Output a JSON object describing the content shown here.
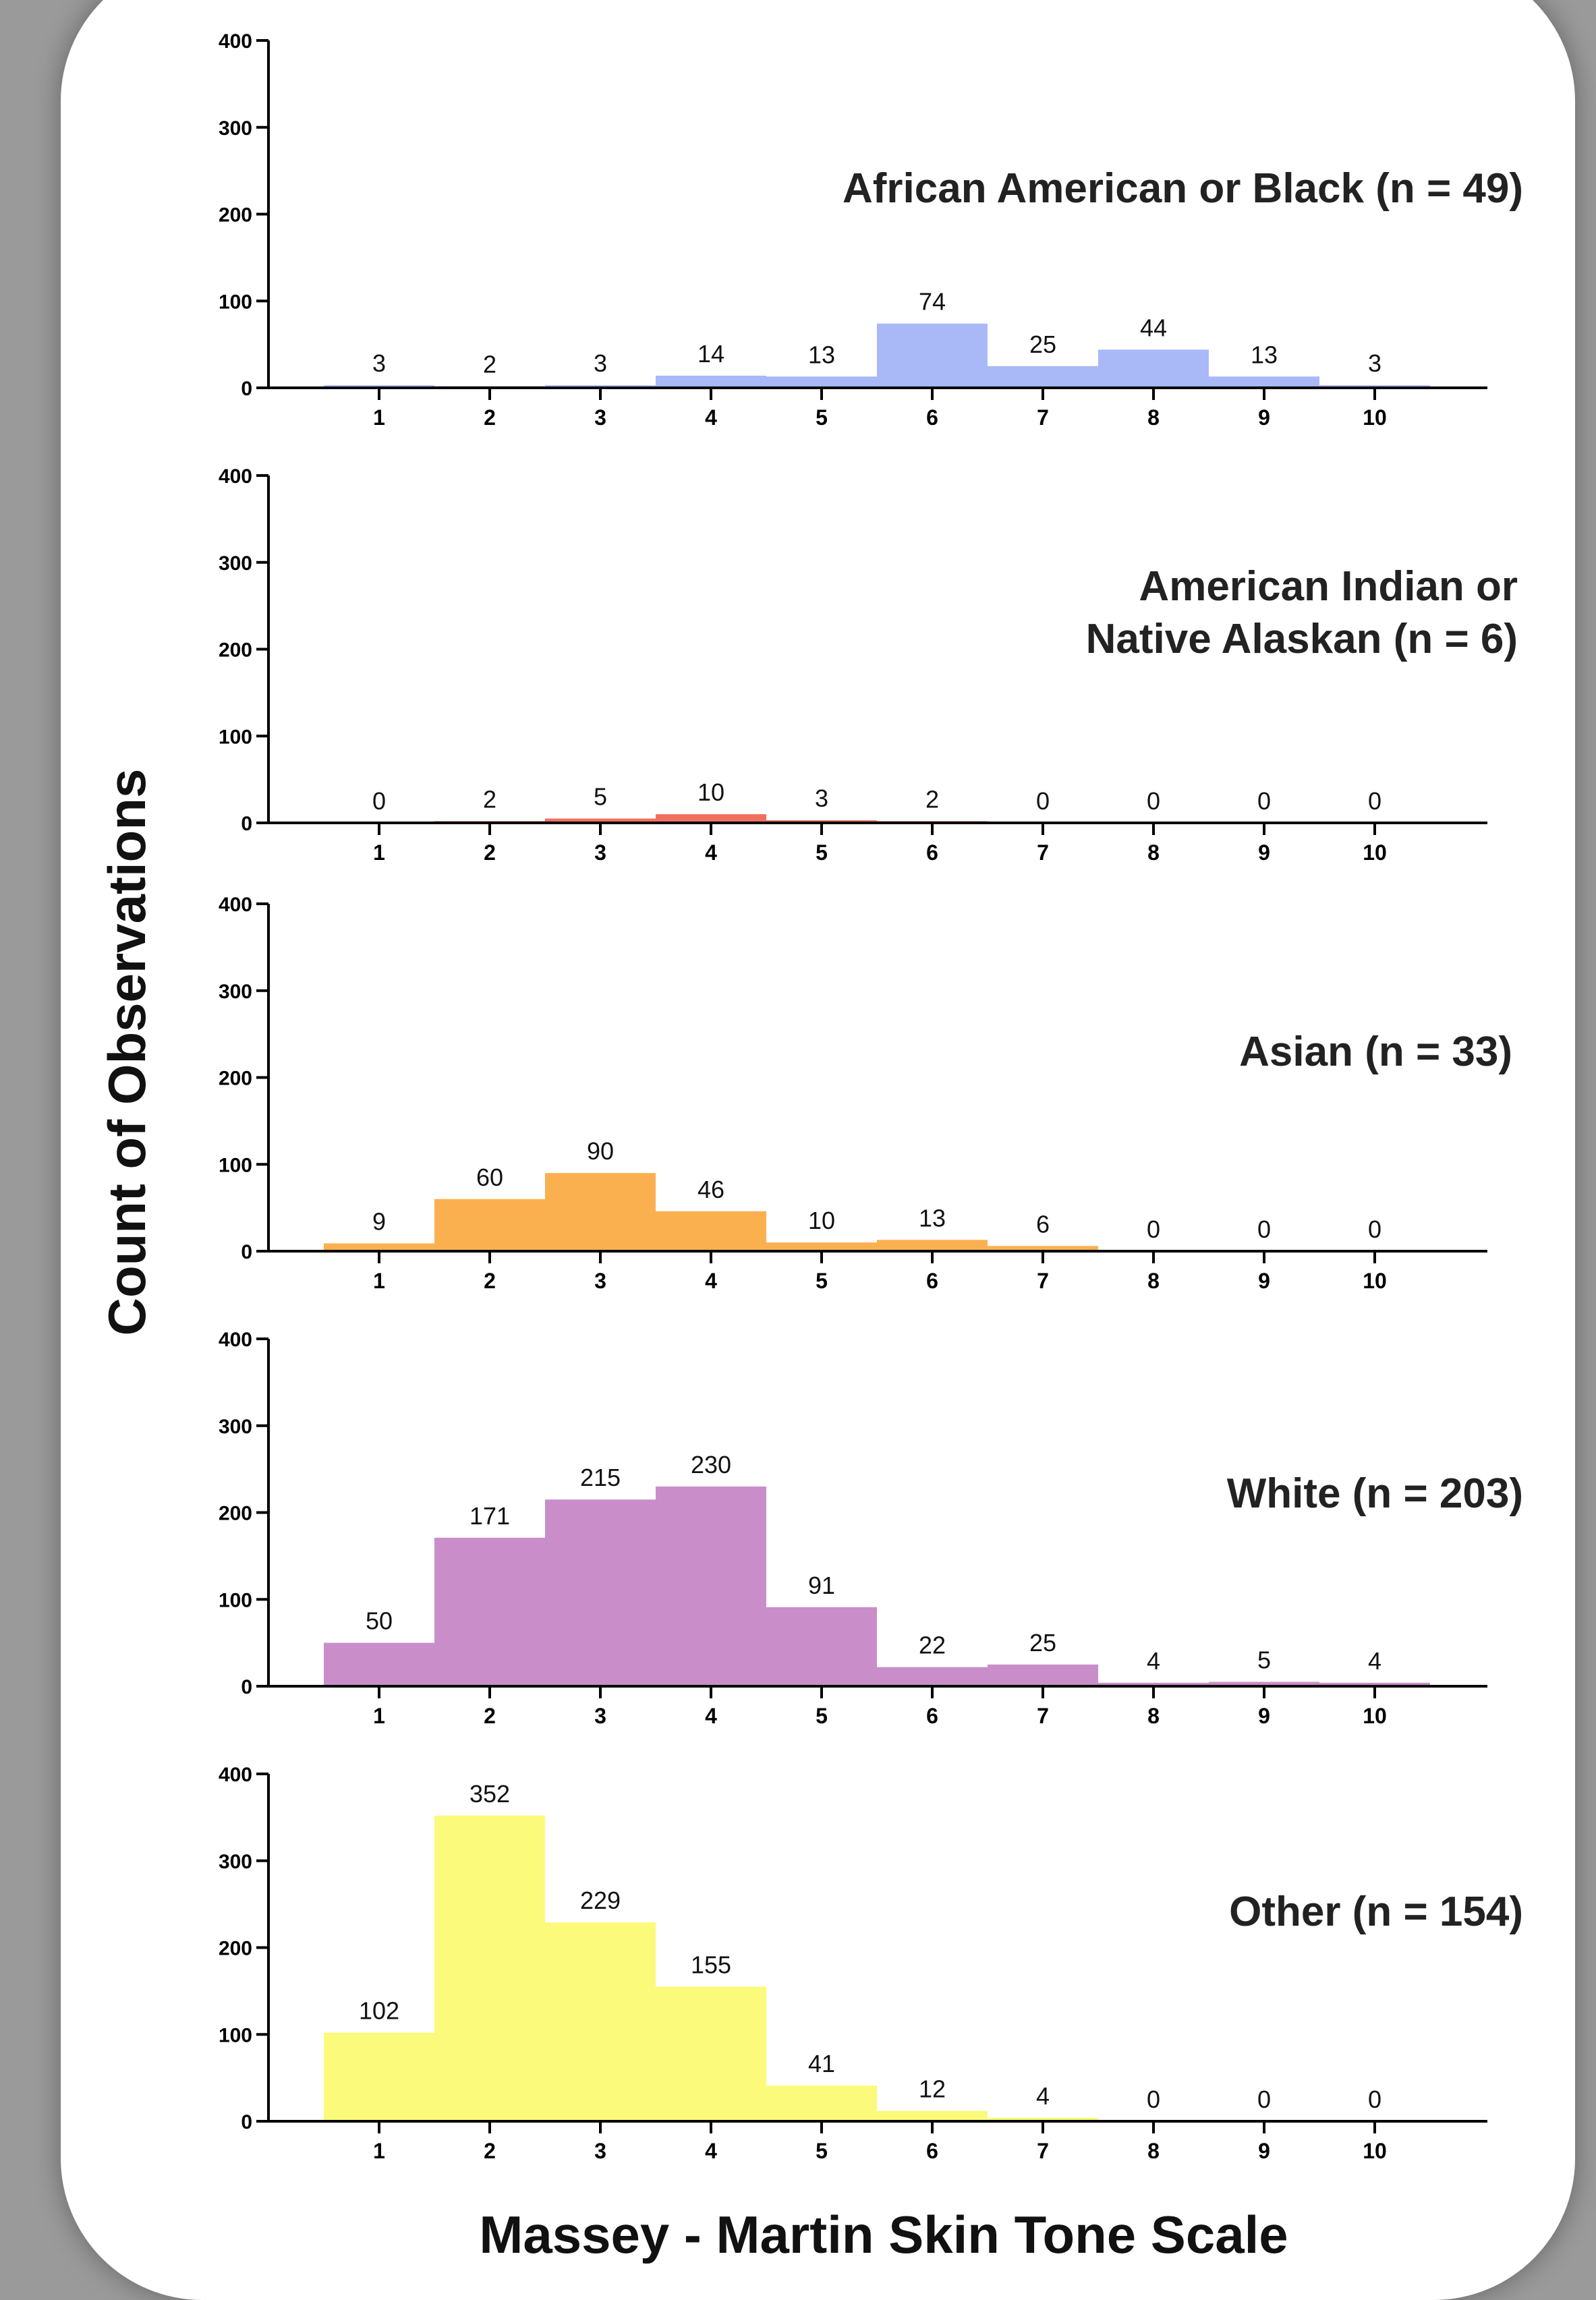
{
  "chart_data": {
    "type": "bar",
    "ylabel": "Count of Observations",
    "xlabel": "Massey - Martin Skin Tone Scale",
    "ylim": [
      0,
      400
    ],
    "yticks": [
      0,
      100,
      200,
      300,
      400
    ],
    "categories": [
      "1",
      "2",
      "3",
      "4",
      "5",
      "6",
      "7",
      "8",
      "9",
      "10"
    ],
    "panels": [
      {
        "title_lines": [
          "African American or Black (n = 49)"
        ],
        "color": "#a9b8f7",
        "values": [
          3,
          2,
          3,
          14,
          13,
          74,
          25,
          44,
          13,
          3
        ]
      },
      {
        "title_lines": [
          "American Indian or",
          "Native Alaskan (n = 6)"
        ],
        "color": "#f07060",
        "values": [
          0,
          2,
          5,
          10,
          3,
          2,
          0,
          0,
          0,
          0
        ]
      },
      {
        "title_lines": [
          "Asian (n = 33)"
        ],
        "color": "#fbb050",
        "values": [
          9,
          60,
          90,
          46,
          10,
          13,
          6,
          0,
          0,
          0
        ]
      },
      {
        "title_lines": [
          "White (n = 203)"
        ],
        "color": "#c98ec9",
        "values": [
          50,
          171,
          215,
          230,
          91,
          22,
          25,
          4,
          5,
          4
        ]
      },
      {
        "title_lines": [
          "Other (n = 154)"
        ],
        "color": "#fbfa7a",
        "values": [
          102,
          352,
          229,
          155,
          41,
          12,
          4,
          0,
          0,
          0
        ]
      }
    ]
  }
}
